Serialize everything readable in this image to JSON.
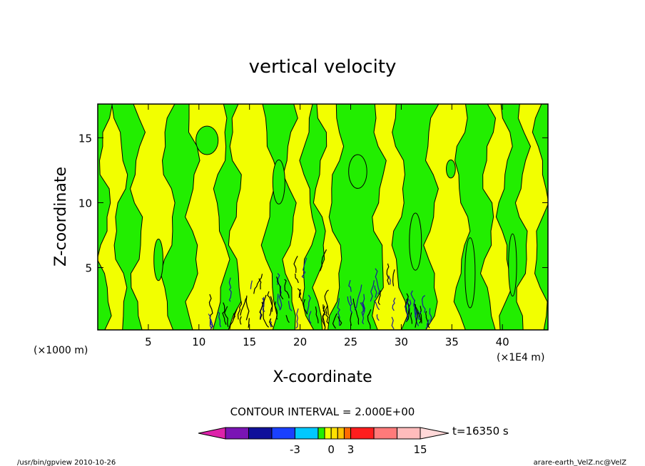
{
  "chart_data": {
    "type": "heatmap",
    "title": "vertical velocity",
    "xlabel": "X-coordinate",
    "ylabel": "Z-coordinate",
    "x_unit_label": "(×1E4 m)",
    "y_unit_label": "(×1000 m)",
    "xlim": [
      0,
      44.5
    ],
    "ylim": [
      0.2,
      17.6
    ],
    "x_ticks": [
      5,
      10,
      15,
      20,
      25,
      30,
      35,
      40
    ],
    "y_ticks": [
      5,
      10,
      15
    ],
    "contour_interval_text": "CONTOUR INTERVAL = 2.000E+00",
    "time_text": "t=16350 s",
    "colors": {
      "positive_fill": "#f2ff00",
      "negative_fill": "#22ee00",
      "contour_line": "#000000",
      "turbulent_line": "#1a1a9a"
    },
    "colorbar": {
      "colors": [
        "#dd22aa",
        "#7a14b4",
        "#10109a",
        "#1a40ff",
        "#00c8ff",
        "#22ee00",
        "#f2ff00",
        "#ffe000",
        "#ffc200",
        "#ff6a00",
        "#ff1e1e",
        "#ff7a7a",
        "#ffbcbc",
        "#ffd8d8"
      ],
      "tick_labels": [
        "-3",
        "0",
        "3",
        "15"
      ],
      "tick_values": [
        -3,
        0,
        3,
        15
      ]
    },
    "positive_bands_x": [
      [
        0.7,
        2.2
      ],
      [
        3.9,
        7.0
      ],
      [
        9.4,
        12.2
      ],
      [
        13.6,
        17.0
      ],
      [
        19.0,
        20.8
      ],
      [
        22.0,
        23.5
      ],
      [
        27.8,
        29.8
      ],
      [
        33.0,
        36.0
      ],
      [
        38.6,
        40.2
      ],
      [
        42.0,
        43.8
      ]
    ],
    "negative_patches": [
      {
        "x": 10.8,
        "z": 14.8,
        "w": 2.2,
        "h": 2.2
      },
      {
        "x": 17.9,
        "z": 11.6,
        "w": 1.2,
        "h": 3.4
      },
      {
        "x": 25.7,
        "z": 12.4,
        "w": 1.8,
        "h": 2.6
      },
      {
        "x": 34.9,
        "z": 12.6,
        "w": 0.9,
        "h": 1.4
      },
      {
        "x": 31.4,
        "z": 7.0,
        "w": 1.2,
        "h": 4.4
      },
      {
        "x": 36.8,
        "z": 4.6,
        "w": 1.0,
        "h": 5.4
      },
      {
        "x": 41.0,
        "z": 5.2,
        "w": 0.8,
        "h": 4.8
      },
      {
        "x": 6.0,
        "z": 5.6,
        "w": 0.9,
        "h": 3.2
      }
    ],
    "turbulent_range_x": [
      11.0,
      33.0
    ]
  },
  "footer": {
    "left": "/usr/bin/gpview  2010-10-26",
    "right": "arare-earth_VelZ.nc@VelZ"
  }
}
